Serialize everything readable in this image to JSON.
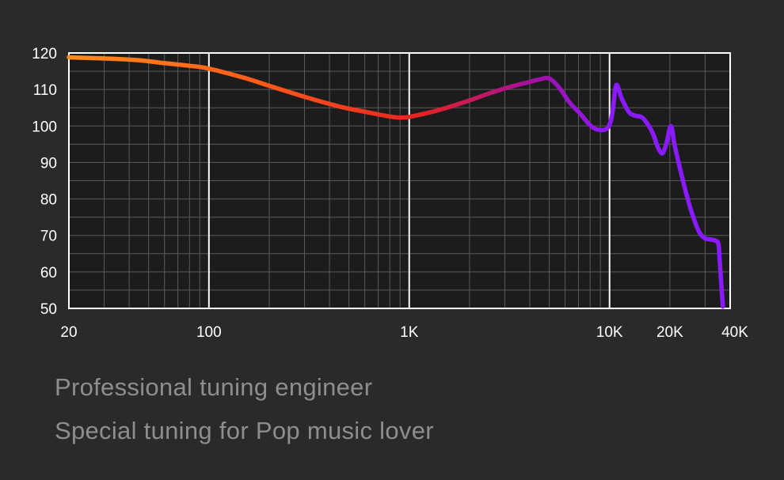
{
  "captions": {
    "line1": "Professional tuning engineer",
    "line2": "Special tuning for Pop music lover"
  },
  "colors": {
    "background": "#2a2a2a",
    "plot_background": "#1c1c1c",
    "frame": "#ffffff",
    "minor_grid": "#5a5a5a",
    "major_grid": "#ffffff",
    "caption": "#8e8e8e",
    "curve_start": "#ff8c1a",
    "curve_mid": "#e62222",
    "curve_end": "#8a1aff"
  },
  "chart_data": {
    "type": "line",
    "xscale": "log",
    "xlim": [
      20,
      40000
    ],
    "ylim": [
      50,
      120
    ],
    "xticks": [
      {
        "value": 20,
        "label": "20"
      },
      {
        "value": 100,
        "label": "100"
      },
      {
        "value": 1000,
        "label": "1K"
      },
      {
        "value": 10000,
        "label": "10K"
      },
      {
        "value": 20000,
        "label": "20K"
      },
      {
        "value": 40000,
        "label": "40K"
      }
    ],
    "major_gridlines_x": [
      100,
      1000,
      10000
    ],
    "yticks": [
      {
        "value": 120,
        "label": "120"
      },
      {
        "value": 110,
        "label": "110"
      },
      {
        "value": 100,
        "label": "100"
      },
      {
        "value": 90,
        "label": "90"
      },
      {
        "value": 80,
        "label": "80"
      },
      {
        "value": 70,
        "label": "70"
      },
      {
        "value": 60,
        "label": "60"
      },
      {
        "value": 50,
        "label": "50"
      }
    ],
    "grid": true,
    "series": [
      {
        "x": [
          20,
          30,
          45,
          60,
          80,
          100,
          150,
          200,
          300,
          450,
          600,
          800,
          900,
          1000,
          1200,
          1500,
          2000,
          2500,
          3000,
          3500,
          4000,
          4500,
          5000,
          5600,
          6300,
          7100,
          7900,
          8500,
          9300,
          9800,
          10100,
          10400,
          10800,
          11500,
          12500,
          13500,
          14500,
          15500,
          16500,
          17400,
          18000,
          18500,
          19300,
          20000,
          20500,
          21000,
          22000,
          24000,
          26000,
          28000,
          30000,
          32000,
          34000,
          35000
        ],
        "y": [
          118.8,
          118.5,
          118,
          117.2,
          116.5,
          115.7,
          113.2,
          111,
          108,
          105.3,
          103.9,
          102.6,
          102.3,
          102.5,
          103.4,
          104.8,
          107,
          108.9,
          110.3,
          111.3,
          112.1,
          112.8,
          113,
          110.5,
          106.5,
          103.5,
          100.5,
          99.2,
          98.9,
          99.5,
          101,
          104.5,
          111.2,
          107.5,
          103.8,
          102.8,
          102.4,
          100.5,
          97.8,
          94.2,
          92.8,
          92.7,
          95.5,
          99.5,
          99.3,
          95.5,
          90.5,
          82,
          75.5,
          71,
          69.2,
          68.9,
          68.5,
          67.5
        ]
      }
    ],
    "series_extension_note": null
  }
}
